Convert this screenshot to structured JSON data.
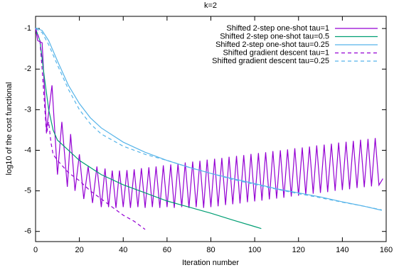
{
  "chart_data": {
    "type": "line",
    "title": "k=2",
    "x_label": "Iteration number",
    "y_label": "log10 of the cost functional",
    "xlim": [
      0,
      160
    ],
    "ylim": [
      -6.25,
      -0.7
    ],
    "xticks": [
      0,
      20,
      40,
      60,
      80,
      100,
      120,
      140,
      160
    ],
    "yticks": [
      -1,
      -2,
      -3,
      -4,
      -5,
      -6
    ],
    "legend": "top-right",
    "series": [
      {
        "name": "Shifted 2-step one-shot tau=1",
        "color": "#9400d3",
        "dashed": false,
        "x": [
          0,
          1,
          3,
          5,
          7.5,
          10,
          12,
          14.5,
          16,
          18,
          20,
          22,
          24,
          26,
          28,
          30,
          31.7,
          33.3,
          35,
          36.7,
          38.3,
          40,
          41.7,
          43.3,
          45,
          46.7,
          48.3,
          50,
          51.7,
          53.3,
          55,
          56.7,
          58.3,
          60,
          61.7,
          63.3,
          65,
          66.7,
          68.3,
          70,
          71.7,
          73.3,
          75,
          76.7,
          78.3,
          80,
          81.7,
          83.3,
          85,
          86.7,
          88.3,
          90,
          91.7,
          93.3,
          95,
          96.7,
          98.3,
          100,
          101.7,
          103.3,
          105,
          106.7,
          108.3,
          110,
          111.7,
          113.3,
          115,
          116.7,
          118.3,
          120,
          121.7,
          123.3,
          125,
          126.7,
          128.3,
          130,
          131.7,
          133.3,
          135,
          136.7,
          138.3,
          140,
          141.7,
          143.3,
          145,
          146.7,
          148.3,
          150,
          151.7,
          153.3,
          155,
          156.7,
          158.5
        ],
        "values": [
          -1,
          -1.3,
          -1.35,
          -3.5,
          -2.4,
          -4.6,
          -3.3,
          -4.9,
          -3.6,
          -5.0,
          -4.1,
          -5.2,
          -4.4,
          -5.3,
          -4.4,
          -5.4,
          -4.45,
          -5.4,
          -4.5,
          -5.42,
          -4.5,
          -5.4,
          -4.49,
          -5.42,
          -4.47,
          -5.4,
          -4.44,
          -5.42,
          -4.42,
          -5.4,
          -4.4,
          -5.42,
          -4.37,
          -5.4,
          -4.35,
          -5.42,
          -4.33,
          -5.4,
          -4.3,
          -5.42,
          -4.28,
          -5.4,
          -4.26,
          -5.42,
          -4.23,
          -5.4,
          -4.21,
          -5.38,
          -4.19,
          -5.35,
          -4.16,
          -5.33,
          -4.14,
          -5.31,
          -4.12,
          -5.28,
          -4.09,
          -5.26,
          -4.07,
          -5.24,
          -4.05,
          -5.21,
          -4.02,
          -5.19,
          -4.0,
          -5.17,
          -3.98,
          -5.14,
          -3.95,
          -5.12,
          -3.93,
          -5.1,
          -3.91,
          -5.07,
          -3.88,
          -5.05,
          -3.86,
          -5.03,
          -3.84,
          -5.0,
          -3.81,
          -4.98,
          -3.79,
          -4.96,
          -3.77,
          -4.93,
          -3.74,
          -4.91,
          -3.72,
          -4.89,
          -3.7,
          -4.86,
          -4.7
        ]
      },
      {
        "name": "Shifted 2-step one-shot tau=0.5",
        "color": "#009e73",
        "dashed": false,
        "x": [
          0,
          2,
          4,
          6,
          8,
          10,
          15,
          20,
          30,
          40,
          50,
          60,
          70,
          80,
          90,
          100,
          103
        ],
        "values": [
          -1,
          -1.3,
          -2.2,
          -3.0,
          -3.5,
          -3.75,
          -4.0,
          -4.25,
          -4.6,
          -4.85,
          -5.05,
          -5.25,
          -5.4,
          -5.55,
          -5.72,
          -5.88,
          -5.93
        ]
      },
      {
        "name": "Shifted 2-step one-shot tau=0.25",
        "color": "#56b4e9",
        "dashed": false,
        "x": [
          0,
          3,
          6,
          10,
          15,
          20,
          25,
          30,
          40,
          50,
          60,
          70,
          80,
          90,
          100,
          110,
          120,
          130,
          140,
          150,
          158
        ],
        "values": [
          -0.98,
          -1.05,
          -1.3,
          -1.8,
          -2.4,
          -2.85,
          -3.2,
          -3.45,
          -3.8,
          -4.05,
          -4.25,
          -4.42,
          -4.57,
          -4.7,
          -4.82,
          -4.95,
          -5.05,
          -5.15,
          -5.27,
          -5.38,
          -5.48
        ]
      },
      {
        "name": "Shifted gradient descent tau=1",
        "color": "#9400d3",
        "dashed": true,
        "x": [
          0,
          2,
          3,
          4,
          5,
          6,
          7,
          8,
          10,
          15,
          20,
          25,
          30,
          35,
          40,
          45,
          50
        ],
        "values": [
          -1,
          -1.3,
          -2.0,
          -2.8,
          -3.6,
          -3.3,
          -3.8,
          -4.1,
          -4.25,
          -4.55,
          -4.75,
          -5.0,
          -5.2,
          -5.4,
          -5.6,
          -5.75,
          -5.95
        ]
      },
      {
        "name": "Shifted gradient descent tau=0.25",
        "color": "#56b4e9",
        "dashed": true,
        "x": [
          0,
          3,
          6,
          10,
          15,
          20,
          25,
          30,
          40,
          50,
          60,
          70,
          80,
          90,
          100,
          110,
          120,
          130,
          140,
          150,
          158
        ],
        "values": [
          -1.0,
          -1.1,
          -1.4,
          -1.9,
          -2.5,
          -3.0,
          -3.35,
          -3.6,
          -3.9,
          -4.1,
          -4.25,
          -4.42,
          -4.57,
          -4.72,
          -4.84,
          -4.96,
          -5.07,
          -5.17,
          -5.28,
          -5.38,
          -5.47
        ]
      }
    ]
  }
}
